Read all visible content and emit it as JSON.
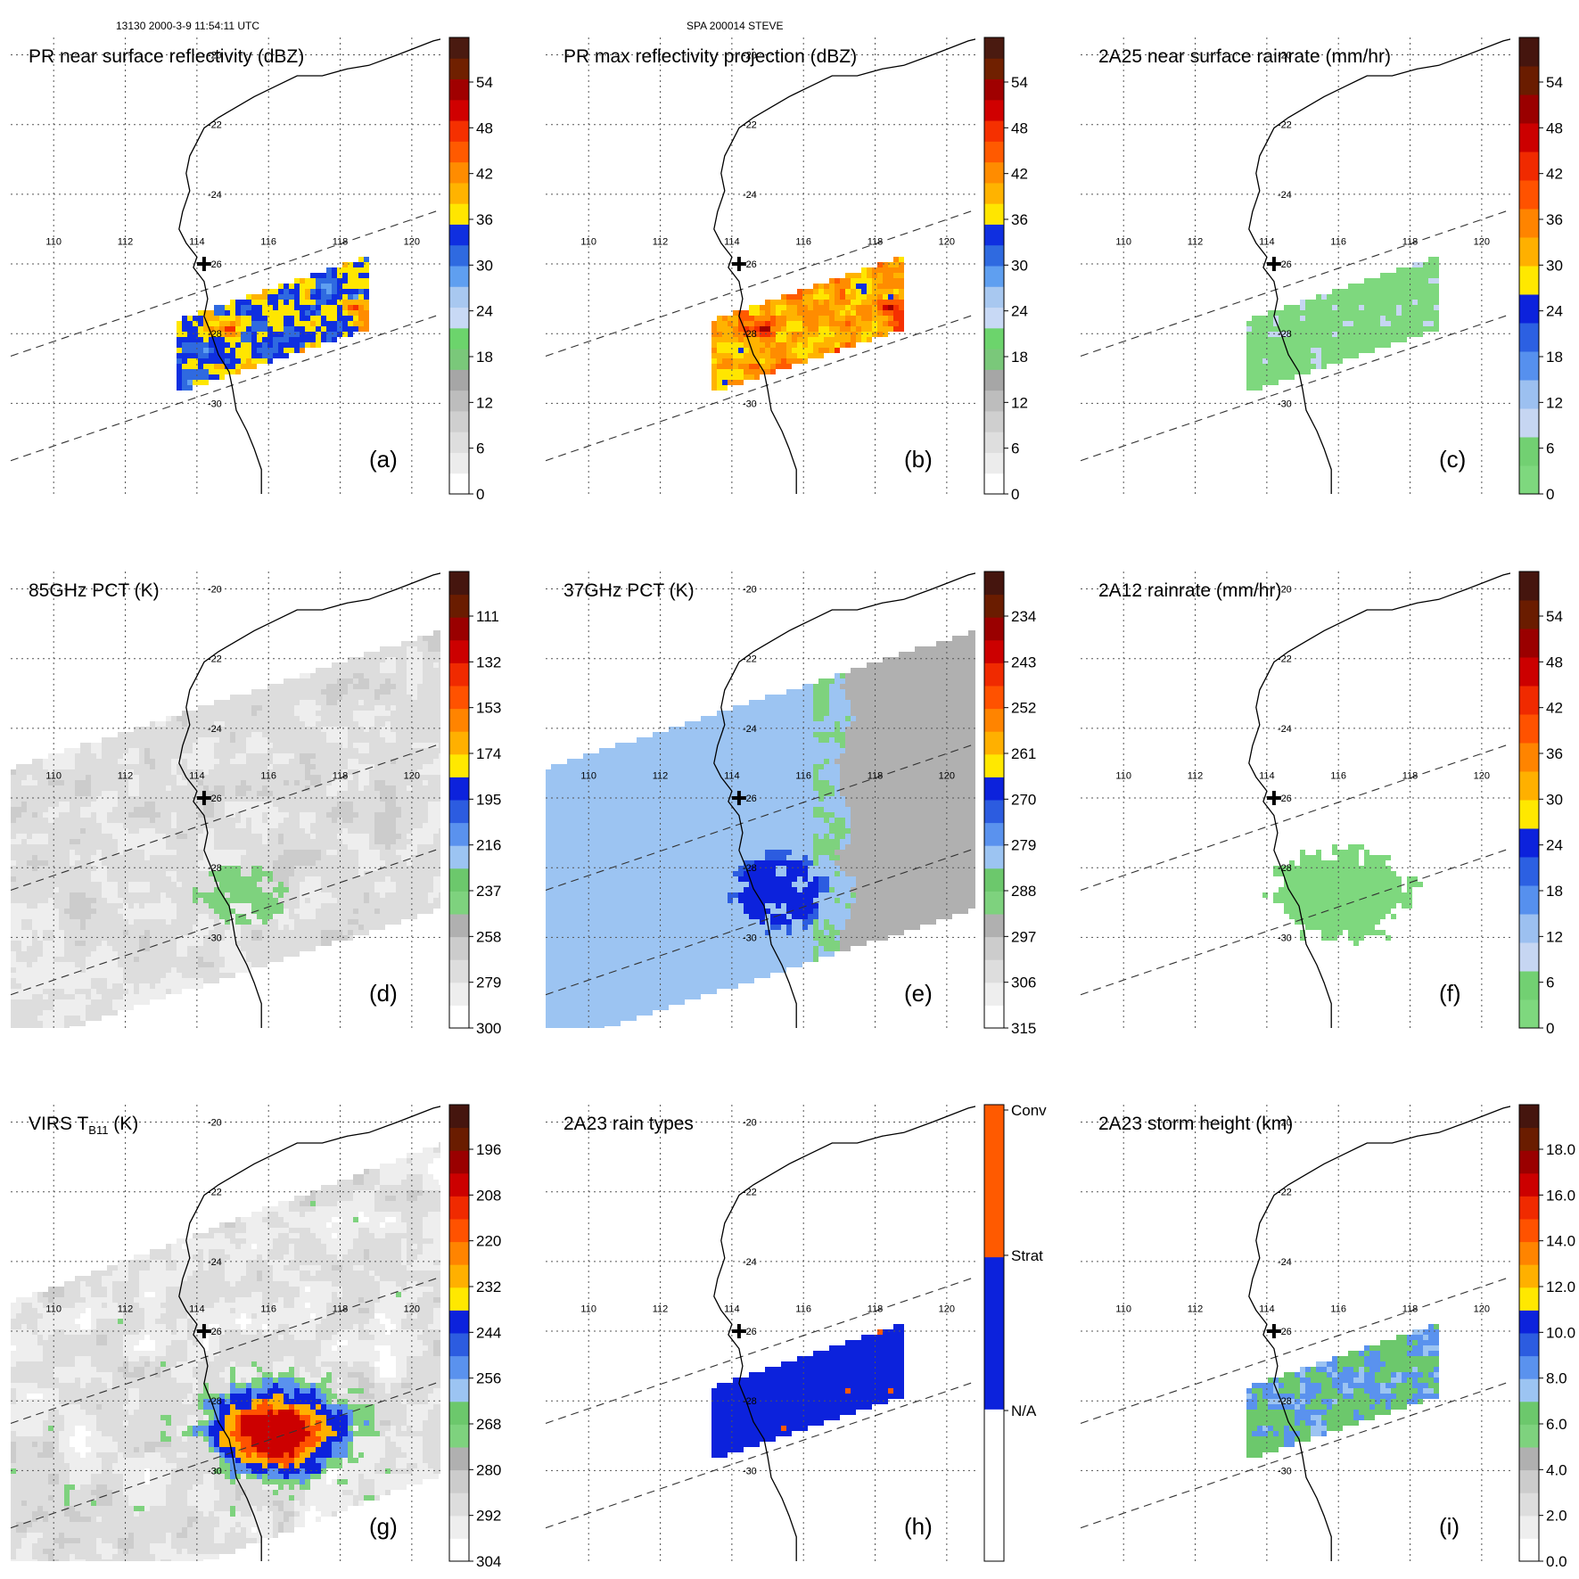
{
  "header": {
    "left": "13130 2000-3-9 11:54:11 UTC",
    "center": "SPA 200014 STEVE"
  },
  "map": {
    "lon_labels": [
      "110",
      "112",
      "114",
      "116",
      "118",
      "120"
    ],
    "lat_labels": [
      "-20",
      "-22",
      "-24",
      "-26",
      "-28",
      "-30"
    ],
    "coast_color": "#000000",
    "swath_line_style": "dashed",
    "grid_style": "dotted",
    "storm_marker": "plus"
  },
  "colorbars": {
    "reflectivity": [
      "#ffffff",
      "#ececec",
      "#dedede",
      "#cfcfcf",
      "#bdbdbd",
      "#a6a6a6",
      "#7ac87a",
      "#6cd46c",
      "#c8d9f5",
      "#a8c8f0",
      "#5f9ff0",
      "#2f6ae0",
      "#0f2fe0",
      "#ffe600",
      "#ffb300",
      "#ff8c00",
      "#ff5a00",
      "#f53000",
      "#d00000",
      "#a00000",
      "#702000",
      "#4a1a10"
    ],
    "rainrate": [
      "#7ed87e",
      "#72d072",
      "#c6d6f2",
      "#9cc0f0",
      "#5690ee",
      "#2c60e2",
      "#0c22dc",
      "#ffe800",
      "#ffb000",
      "#ff8400",
      "#ff5200",
      "#f02a00",
      "#cc0000",
      "#9a0000",
      "#6a1c00",
      "#45150e"
    ],
    "pct_gray": [
      "#ffffff",
      "#eeeeee",
      "#dddddd",
      "#cccccc",
      "#b0b0b0",
      "#7ed27e",
      "#6cc86c",
      "#9cc4f2",
      "#5a92ee",
      "#2c5ce0",
      "#0c22dc",
      "#ffe800",
      "#ffb000",
      "#ff8400",
      "#ff5200",
      "#f02a00",
      "#cc0000",
      "#9a0000",
      "#6a1c00",
      "#45150e"
    ],
    "raintype": [
      "#ffffff",
      "#0c22dc",
      "#ff5a00"
    ]
  },
  "panels": [
    {
      "label": "(a)",
      "title": "PR near surface reflectivity (dBZ)",
      "cbar": "reflectivity",
      "ticks": [
        "54",
        "48",
        "42",
        "36",
        "30",
        "24",
        "18",
        "12",
        "6",
        "0"
      ],
      "field": "pr_near"
    },
    {
      "label": "(b)",
      "title": "PR max reflectivity projection (dBZ)",
      "cbar": "reflectivity",
      "ticks": [
        "54",
        "48",
        "42",
        "36",
        "30",
        "24",
        "18",
        "12",
        "6",
        "0"
      ],
      "field": "pr_max"
    },
    {
      "label": "(c)",
      "title": "2A25 near surface rainrate (mm/hr)",
      "cbar": "rainrate",
      "ticks": [
        "54",
        "48",
        "42",
        "36",
        "30",
        "24",
        "18",
        "12",
        "6",
        "0"
      ],
      "field": "rain2a25"
    },
    {
      "label": "(d)",
      "title": "85GHz PCT (K)",
      "cbar": "pct_gray",
      "ticks": [
        "111",
        "132",
        "153",
        "174",
        "195",
        "216",
        "237",
        "258",
        "279",
        "300"
      ],
      "field": "pct85"
    },
    {
      "label": "(e)",
      "title": "37GHz PCT (K)",
      "cbar": "pct_gray",
      "ticks": [
        "234",
        "243",
        "252",
        "261",
        "270",
        "279",
        "288",
        "297",
        "306",
        "315"
      ],
      "field": "pct37"
    },
    {
      "label": "(f)",
      "title": "2A12 rainrate (mm/hr)",
      "cbar": "rainrate",
      "ticks": [
        "54",
        "48",
        "42",
        "36",
        "30",
        "24",
        "18",
        "12",
        "6",
        "0"
      ],
      "field": "rain2a12"
    },
    {
      "label": "(g)",
      "title": "VIRS T",
      "title_sub": "B11",
      "title_tail": " (K)",
      "cbar": "pct_gray",
      "ticks": [
        "196",
        "208",
        "220",
        "232",
        "244",
        "256",
        "268",
        "280",
        "292",
        "304"
      ],
      "field": "virs"
    },
    {
      "label": "(h)",
      "title": "2A23 rain types",
      "cbar": "raintype",
      "ticks": [
        "Conv",
        "Strat",
        "N/A"
      ],
      "field": "raintype"
    },
    {
      "label": "(i)",
      "title": "2A23 storm height (km)",
      "cbar": "pct_gray",
      "ticks": [
        "18.0",
        "16.0",
        "14.0",
        "12.0",
        "10.0",
        "8.0",
        "6.0",
        "4.0",
        "2.0",
        "0.0"
      ],
      "field": "height"
    }
  ],
  "chart_data": {
    "type": "heatmap",
    "x_axis": {
      "name": "longitude",
      "ticks": [
        110,
        112,
        114,
        116,
        118,
        120
      ],
      "range": [
        108.8,
        120.8
      ]
    },
    "y_axis": {
      "name": "latitude",
      "ticks": [
        -20,
        -22,
        -24,
        -26,
        -28,
        -30
      ],
      "range": [
        -32.6,
        -19.5
      ]
    },
    "storm_center": {
      "lon": 114.2,
      "lat": -26.0
    },
    "grid": true,
    "legend": "right"
  }
}
